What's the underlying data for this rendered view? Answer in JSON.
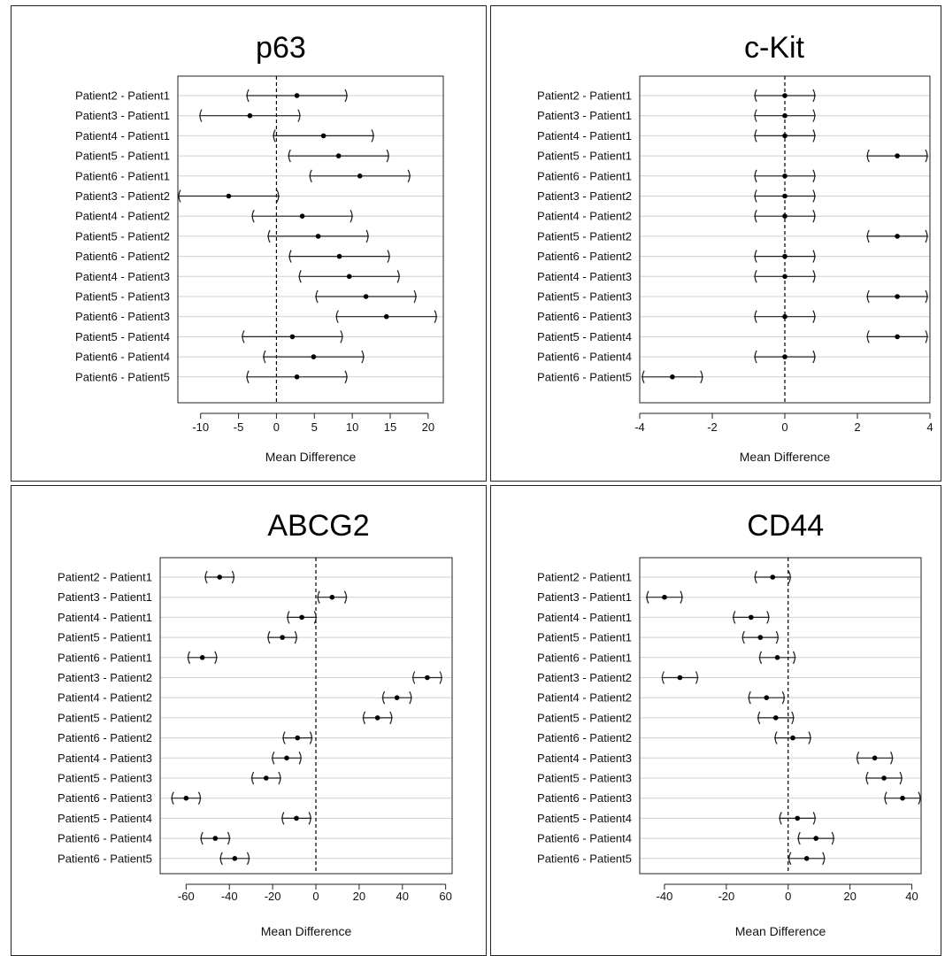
{
  "chart_data": [
    {
      "type": "scatter",
      "title": "p63",
      "xlabel": "Mean Difference",
      "ylabel": "",
      "xlim": [
        -13,
        22
      ],
      "xticks": [
        -10,
        -5,
        0,
        5,
        10,
        15,
        20
      ],
      "grid": true,
      "reference_line": 0,
      "comparisons": [
        "Patient2 - Patient1",
        "Patient3 - Patient1",
        "Patient4 - Patient1",
        "Patient5 - Patient1",
        "Patient6 - Patient1",
        "Patient3 - Patient2",
        "Patient4 - Patient2",
        "Patient5 - Patient2",
        "Patient6 - Patient2",
        "Patient4 - Patient3",
        "Patient5 - Patient3",
        "Patient6 - Patient3",
        "Patient5 - Patient4",
        "Patient6 - Patient4",
        "Patient6 - Patient5"
      ],
      "estimate": [
        2.7,
        -3.5,
        6.2,
        8.2,
        11.0,
        -6.3,
        3.4,
        5.5,
        8.3,
        9.6,
        11.8,
        14.5,
        2.1,
        4.9,
        2.7
      ],
      "lower": [
        -4.0,
        -10.2,
        -0.5,
        1.5,
        4.3,
        -13.0,
        -3.3,
        -1.2,
        1.6,
        2.9,
        5.1,
        7.8,
        -4.6,
        -1.8,
        -4.0
      ],
      "upper": [
        9.4,
        3.2,
        12.9,
        14.9,
        17.7,
        0.4,
        10.1,
        12.2,
        15.0,
        16.3,
        18.5,
        21.2,
        8.8,
        11.6,
        9.4
      ]
    },
    {
      "type": "scatter",
      "title": "c-Kit",
      "xlabel": "Mean Difference",
      "ylabel": "",
      "xlim": [
        -4,
        4
      ],
      "xticks": [
        -4,
        -2,
        0,
        2,
        4
      ],
      "grid": true,
      "reference_line": 0,
      "comparisons": [
        "Patient2 - Patient1",
        "Patient3 - Patient1",
        "Patient4 - Patient1",
        "Patient5 - Patient1",
        "Patient6 - Patient1",
        "Patient3 - Patient2",
        "Patient4 - Patient2",
        "Patient5 - Patient2",
        "Patient6 - Patient2",
        "Patient4 - Patient3",
        "Patient5 - Patient3",
        "Patient6 - Patient3",
        "Patient5 - Patient4",
        "Patient6 - Patient4",
        "Patient6 - Patient5"
      ],
      "estimate": [
        0,
        0,
        0,
        3.1,
        0,
        0,
        0,
        3.1,
        0,
        0,
        3.1,
        0,
        3.1,
        0,
        -3.1
      ],
      "lower": [
        -0.85,
        -0.85,
        -0.85,
        2.25,
        -0.85,
        -0.85,
        -0.85,
        2.25,
        -0.85,
        -0.85,
        2.25,
        -0.85,
        2.25,
        -0.85,
        -3.95
      ],
      "upper": [
        0.85,
        0.85,
        0.85,
        3.95,
        0.85,
        0.85,
        0.85,
        3.95,
        0.85,
        0.85,
        3.95,
        0.85,
        3.95,
        0.85,
        -2.25
      ]
    },
    {
      "type": "scatter",
      "title": "ABCG2",
      "xlabel": "Mean Difference",
      "ylabel": "",
      "xlim": [
        -72,
        63
      ],
      "xticks": [
        -60,
        -40,
        -20,
        0,
        20,
        40,
        60
      ],
      "grid": true,
      "reference_line": 0,
      "comparisons": [
        "Patient2 - Patient1",
        "Patient3 - Patient1",
        "Patient4 - Patient1",
        "Patient5 - Patient1",
        "Patient6 - Patient1",
        "Patient3 - Patient2",
        "Patient4 - Patient2",
        "Patient5 - Patient2",
        "Patient6 - Patient2",
        "Patient4 - Patient3",
        "Patient5 - Patient3",
        "Patient6 - Patient3",
        "Patient5 - Patient4",
        "Patient6 - Patient4",
        "Patient6 - Patient5"
      ],
      "estimate": [
        -44.5,
        7.5,
        -6.5,
        -15.5,
        -52.5,
        51.5,
        37.5,
        28.5,
        -8.5,
        -13.5,
        -23.0,
        -60.0,
        -9.0,
        -46.5,
        -37.5
      ],
      "lower": [
        -51.5,
        0.5,
        -13.5,
        -22.5,
        -59.5,
        44.5,
        30.5,
        21.5,
        -15.5,
        -20.5,
        -30.0,
        -67.0,
        -16.0,
        -53.5,
        -44.5
      ],
      "upper": [
        -37.5,
        14.5,
        0.5,
        -8.5,
        -45.5,
        58.5,
        44.5,
        35.5,
        -1.5,
        -6.5,
        -16.0,
        -53.0,
        -2.0,
        -39.5,
        -30.5
      ]
    },
    {
      "type": "scatter",
      "title": "CD44",
      "xlabel": "Mean Difference",
      "ylabel": "",
      "xlim": [
        -48,
        43
      ],
      "xticks": [
        -40,
        -20,
        0,
        20,
        40
      ],
      "grid": true,
      "reference_line": 0,
      "comparisons": [
        "Patient2 - Patient1",
        "Patient3 - Patient1",
        "Patient4 - Patient1",
        "Patient5 - Patient1",
        "Patient6 - Patient1",
        "Patient3 - Patient2",
        "Patient4 - Patient2",
        "Patient5 - Patient2",
        "Patient6 - Patient2",
        "Patient4 - Patient3",
        "Patient5 - Patient3",
        "Patient6 - Patient3",
        "Patient5 - Patient4",
        "Patient6 - Patient4",
        "Patient6 - Patient5"
      ],
      "estimate": [
        -5.0,
        -40.0,
        -12.0,
        -9.0,
        -3.5,
        -35.0,
        -7.0,
        -4.0,
        1.5,
        28.0,
        31.0,
        37.0,
        3.0,
        9.0,
        6.0
      ],
      "lower": [
        -11.0,
        -46.0,
        -18.0,
        -15.0,
        -9.5,
        -41.0,
        -13.0,
        -10.0,
        -4.5,
        22.0,
        25.0,
        31.0,
        -3.0,
        3.0,
        0.0
      ],
      "upper": [
        1.0,
        -34.0,
        -6.0,
        -3.0,
        2.5,
        -29.0,
        -1.0,
        2.0,
        7.5,
        34.0,
        37.0,
        43.0,
        9.0,
        15.0,
        12.0
      ]
    }
  ],
  "colors": {
    "interval": "#222222",
    "point": "#000000",
    "gridline": "#d0d0d0",
    "reference_line": "#000000",
    "frame": "#222222"
  }
}
